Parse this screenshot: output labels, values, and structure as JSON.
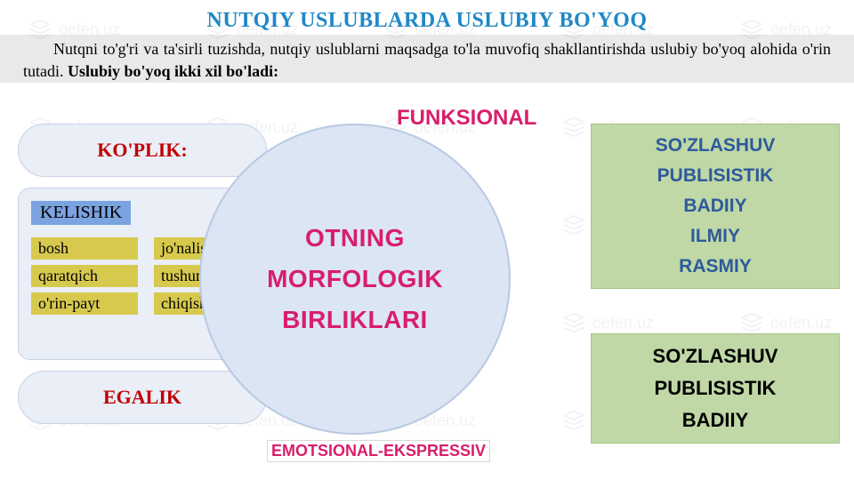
{
  "title": {
    "text": "NUTQIY USLUBLARDA USLUBIY BO'YOQ",
    "color": "#1e88c7",
    "fontsize": 24
  },
  "intro": {
    "plain": "Nutqni to'g'ri va ta'sirli tuzishda, nutqiy uslublarni maqsadga to'la muvofiq shakllantirishda uslubiy bo'yoq alohida o'rin tutadi. ",
    "bold": "Uslubiy bo'yoq ikki xil bo'ladi:",
    "background": "#e9e9e9",
    "fontsize": 18
  },
  "left": {
    "koplik": "KO'PLIK:",
    "egalik": "EGALIK",
    "kelishik_label": "KELISHIK",
    "cols": [
      [
        "bosh",
        "jo'nalish"
      ],
      [
        "qaratqich",
        "tushum"
      ],
      [
        "o'rin-payt",
        "chiqish"
      ]
    ],
    "pill_color": "#c00000",
    "kelishik_label_bg": "#7ba3e0",
    "cell_bg": "#d7c94e",
    "panel_bg": "#e9eef7"
  },
  "center": {
    "lines": [
      "OTNING",
      "MORFOLOGIK",
      "BIRLIKLARI"
    ],
    "circle_bg": "#dbe5f3",
    "text_color": "#d81e6a",
    "fontsize": 28
  },
  "labels": {
    "funksional": "FUNKSIONAL",
    "emotsional": "EMOTSIONAL-EKSPRESSIV",
    "color": "#d81e6a"
  },
  "right": {
    "upper": {
      "items": [
        "SO'ZLASHUV",
        "PUBLISISTIK",
        "BADIIY",
        "ILMIY",
        "RASMIY"
      ],
      "color": "#2e5a9c"
    },
    "lower": {
      "items": [
        "SO'ZLASHUV",
        "PUBLISISTIK",
        "BADIIY"
      ],
      "color": "#000000"
    },
    "bg": "#bfd8a6"
  },
  "watermark": {
    "text": "oefen.uz",
    "color": "#8a8f96"
  }
}
